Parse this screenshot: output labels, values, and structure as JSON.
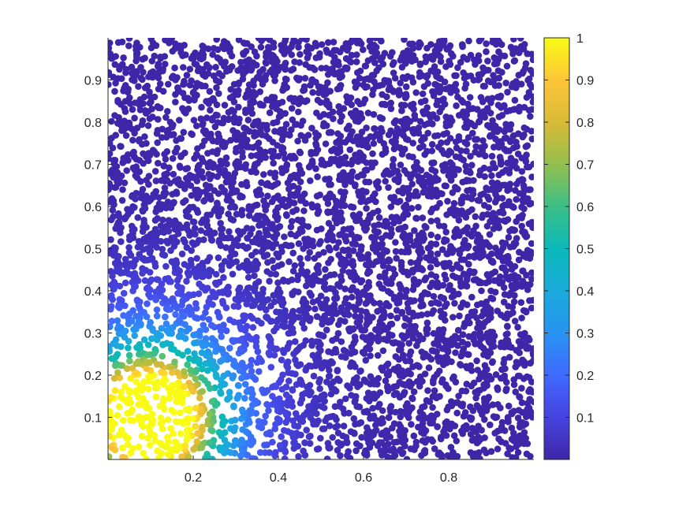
{
  "figure": {
    "background": "#ffffff"
  },
  "chart_data": {
    "type": "scatter",
    "title": "",
    "xlabel": "",
    "ylabel": "",
    "xlim": [
      0,
      1
    ],
    "ylim": [
      0,
      1
    ],
    "xticks": [
      "0.2",
      "0.4",
      "0.6",
      "0.8"
    ],
    "xtick_values": [
      0.2,
      0.4,
      0.6,
      0.8
    ],
    "yticks": [
      "0.1",
      "0.2",
      "0.3",
      "0.4",
      "0.5",
      "0.6",
      "0.7",
      "0.8",
      "0.9"
    ],
    "ytick_values": [
      0.1,
      0.2,
      0.3,
      0.4,
      0.5,
      0.6,
      0.7,
      0.8,
      0.9
    ],
    "grid": false,
    "marker": "filled-circle",
    "point_count_estimate": 5000,
    "color_value_field": {
      "description": "value near 1 inside a disc centred near (0.1, 0.1); decays to ~0 by about r = 0.45",
      "peak_center": [
        0.1,
        0.1
      ],
      "peak_value": 1
    },
    "colorbar": {
      "position": "right",
      "colormap": "parula",
      "limits": [
        0,
        1
      ],
      "ticks": [
        "0.1",
        "0.2",
        "0.3",
        "0.4",
        "0.5",
        "0.6",
        "0.7",
        "0.8",
        "0.9",
        "1"
      ],
      "tick_values": [
        0.1,
        0.2,
        0.3,
        0.4,
        0.5,
        0.6,
        0.7,
        0.8,
        0.9,
        1.0
      ],
      "colors": [
        "#3E26A8",
        "#4743E0",
        "#3F6AFE",
        "#2893F1",
        "#1AABDB",
        "#0AB8B8",
        "#3CBF87",
        "#93BF4D",
        "#D9BA37",
        "#FDC538",
        "#F9FB15"
      ]
    },
    "axis_color": "#262626"
  }
}
